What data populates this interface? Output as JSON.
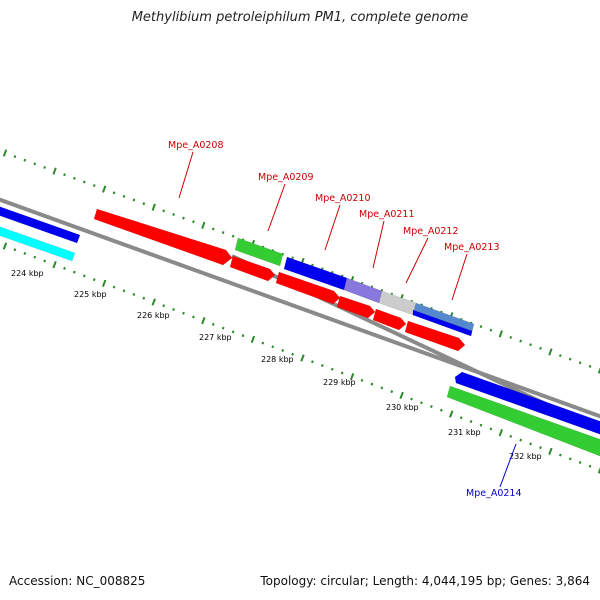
{
  "title": "Methylibium petroleiphilum PM1, complete genome",
  "footer": {
    "accession": "Accession: NC_008825",
    "topology": "Topology: circular; Length: 4,044,195 bp; Genes: 3,864"
  },
  "colors": {
    "red": "#ff0000",
    "blue": "#0000ee",
    "green": "#33cc33",
    "cyan": "#00ffff",
    "lavender": "#8877dd",
    "lightgray": "#cccccc",
    "steelblue": "#5588cc",
    "backbone": "#888888",
    "tick": "#2a8a2a",
    "label_red": "#cc0000",
    "label_blue": "#0000cc"
  },
  "scale_labels": [
    "224 kbp",
    "225 kbp",
    "226 kbp",
    "227 kbp",
    "228 kbp",
    "229 kbp",
    "230 kbp",
    "231 kbp",
    "232 kbp"
  ],
  "gene_labels": [
    {
      "text": "Mpe_A0208",
      "color": "label_red"
    },
    {
      "text": "Mpe_A0209",
      "color": "label_red"
    },
    {
      "text": "Mpe_A0210",
      "color": "label_red"
    },
    {
      "text": "Mpe_A0211",
      "color": "label_red"
    },
    {
      "text": "Mpe_A0212",
      "color": "label_red"
    },
    {
      "text": "Mpe_A0213",
      "color": "label_red"
    },
    {
      "text": "Mpe_A0214",
      "color": "label_blue"
    }
  ]
}
